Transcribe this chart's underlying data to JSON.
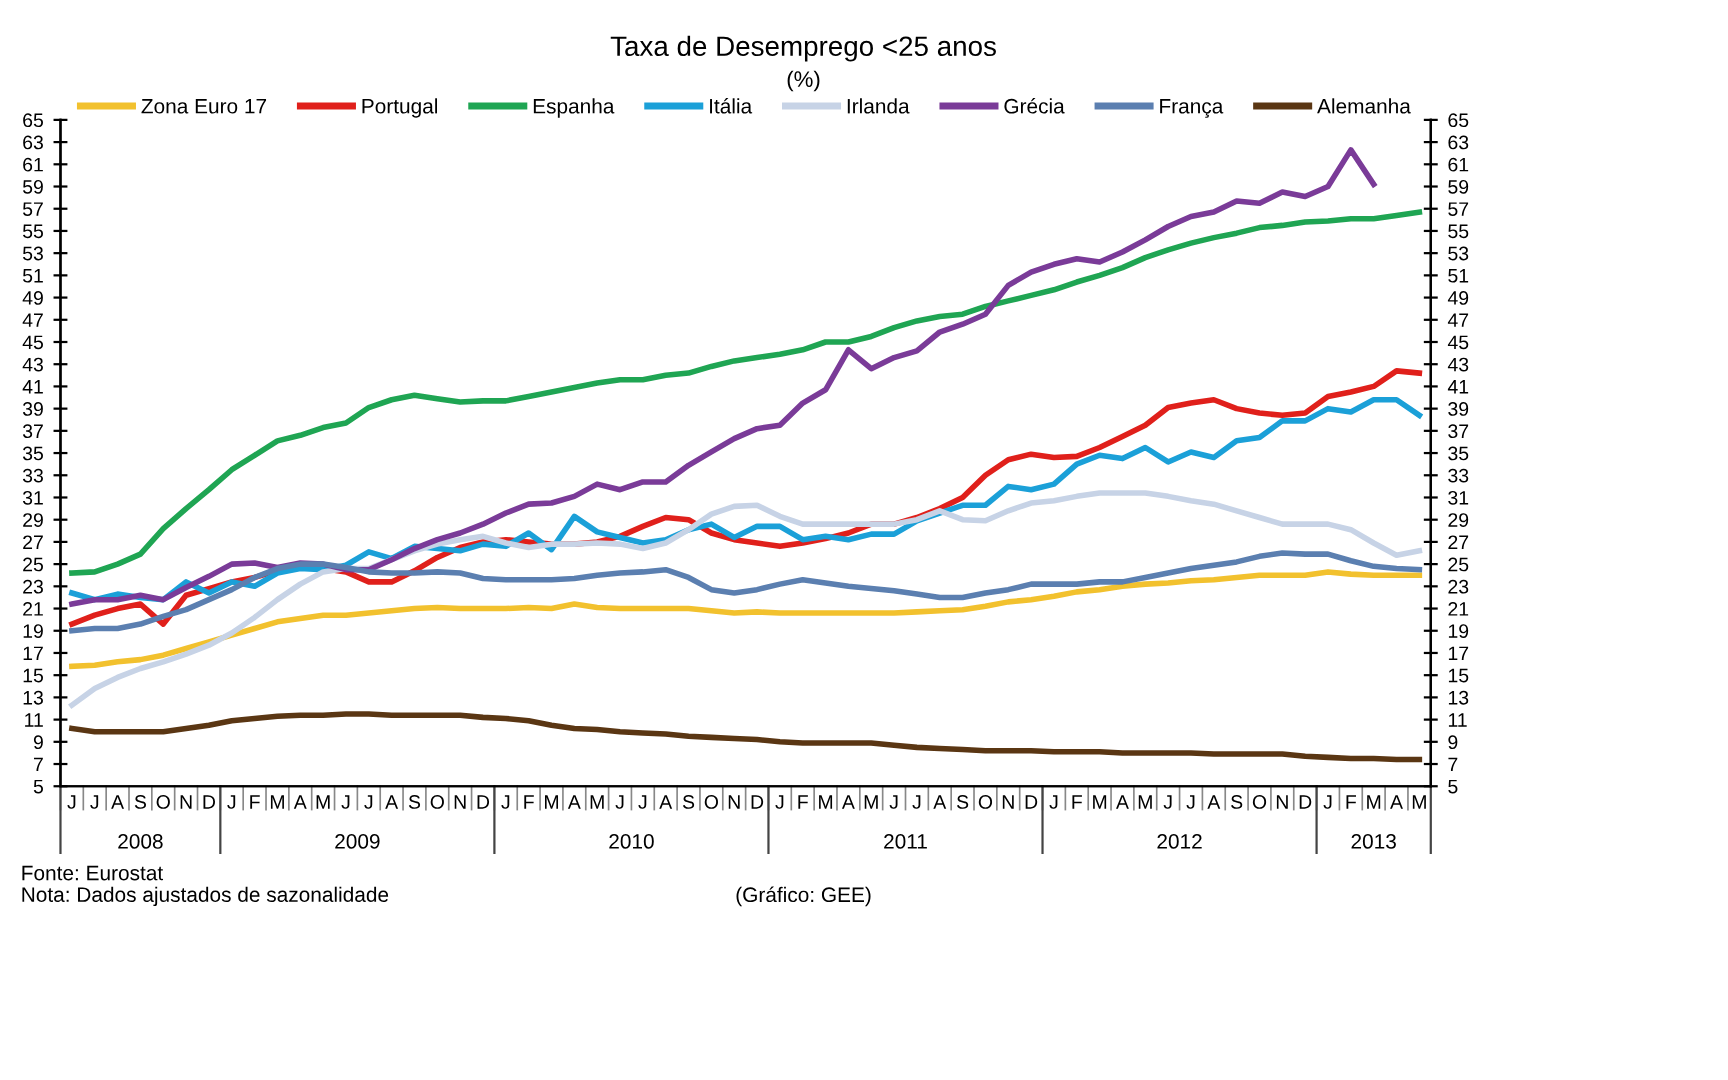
{
  "chart_data": {
    "type": "line",
    "title": "Taxa de Desemprego <25 anos",
    "subtitle": "(%)",
    "categories": [
      "J",
      "J",
      "A",
      "S",
      "O",
      "N",
      "D",
      "J",
      "F",
      "M",
      "A",
      "M",
      "J",
      "J",
      "A",
      "S",
      "O",
      "N",
      "D",
      "J",
      "F",
      "M",
      "A",
      "M",
      "J",
      "J",
      "A",
      "S",
      "O",
      "N",
      "D",
      "J",
      "F",
      "M",
      "A",
      "M",
      "J",
      "J",
      "A",
      "S",
      "O",
      "N",
      "D",
      "J",
      "F",
      "M",
      "A",
      "M",
      "J",
      "J",
      "A",
      "S",
      "O",
      "N",
      "D",
      "J",
      "F",
      "M",
      "A",
      "M"
    ],
    "x2lim": [
      2007.9167,
      2012.9167
    ],
    "x2ticks": [
      {
        "value": 2008.2083,
        "label": "2008"
      },
      2009,
      2010,
      2011,
      2012,
      {
        "value": 2012.7083,
        "label": "2013"
      }
    ],
    "ylim": [
      5,
      65
    ],
    "yticks": [
      5,
      7,
      9,
      11,
      13,
      15,
      17,
      19,
      21,
      23,
      25,
      27,
      29,
      31,
      33,
      35,
      37,
      39,
      41,
      43,
      45,
      47,
      49,
      51,
      53,
      55,
      57,
      59,
      61,
      63,
      65
    ],
    "y2lim": [
      5,
      65
    ],
    "y2ticks": [
      5,
      7,
      9,
      11,
      13,
      15,
      17,
      19,
      21,
      23,
      25,
      27,
      29,
      31,
      33,
      35,
      37,
      39,
      41,
      43,
      45,
      47,
      49,
      51,
      53,
      55,
      57,
      59,
      61,
      63,
      65
    ],
    "grid": false,
    "legend": "top",
    "marker": "none",
    "line_style": "solid",
    "series": [
      {
        "name": "Zona Euro 17",
        "color": "#f2c12e",
        "values": [
          15.8,
          15.9,
          16.2,
          16.4,
          16.8,
          17.4,
          18.0,
          18.6,
          19.2,
          19.8,
          20.1,
          20.4,
          20.4,
          20.6,
          20.8,
          21.0,
          21.1,
          21.0,
          21.0,
          21.0,
          21.1,
          21.0,
          21.4,
          21.1,
          21.0,
          21.0,
          21.0,
          21.0,
          20.8,
          20.6,
          20.7,
          20.6,
          20.6,
          20.6,
          20.6,
          20.6,
          20.6,
          20.7,
          20.8,
          20.9,
          21.2,
          21.6,
          21.8,
          22.1,
          22.5,
          22.7,
          23.0,
          23.2,
          23.3,
          23.5,
          23.6,
          23.8,
          24.0,
          24.0,
          24.0,
          24.3,
          24.1,
          24.0,
          24.0,
          24.0
        ]
      },
      {
        "name": "Portugal",
        "color": "#e0201b",
        "values": [
          19.6,
          20.4,
          21.0,
          21.4,
          19.6,
          22.2,
          22.8,
          23.4,
          23.8,
          24.4,
          24.8,
          24.6,
          24.3,
          23.4,
          23.4,
          24.4,
          25.6,
          26.5,
          27.0,
          27.2,
          27.0,
          26.8,
          26.8,
          27.0,
          27.5,
          28.4,
          29.2,
          29.0,
          27.8,
          27.2,
          26.9,
          26.6,
          26.9,
          27.3,
          27.8,
          28.6,
          28.6,
          29.2,
          30.0,
          31.0,
          33.0,
          34.4,
          34.9,
          34.6,
          34.7,
          35.5,
          36.5,
          37.5,
          39.1,
          39.5,
          39.8,
          39.0,
          38.6,
          38.4,
          38.6,
          40.1,
          40.5,
          41.0,
          42.4,
          42.2
        ]
      },
      {
        "name": "Espanha",
        "color": "#1fa553",
        "values": [
          24.2,
          24.3,
          25.0,
          25.9,
          28.2,
          30.0,
          31.7,
          33.5,
          34.8,
          36.1,
          36.6,
          37.3,
          37.7,
          39.1,
          39.8,
          40.2,
          39.9,
          39.6,
          39.7,
          39.7,
          40.1,
          40.5,
          40.9,
          41.3,
          41.6,
          41.6,
          42.0,
          42.2,
          42.8,
          43.3,
          43.6,
          43.9,
          44.3,
          45.0,
          45.0,
          45.5,
          46.3,
          46.9,
          47.3,
          47.5,
          48.2,
          48.7,
          49.2,
          49.7,
          50.4,
          51.0,
          51.7,
          52.6,
          53.3,
          53.9,
          54.4,
          54.8,
          55.3,
          55.5,
          55.8,
          55.9,
          56.1,
          56.1,
          56.4,
          56.7
        ]
      },
      {
        "name": "Itália",
        "color": "#1ba0d8",
        "values": [
          22.4,
          21.8,
          22.3,
          22.0,
          21.8,
          23.4,
          22.4,
          23.4,
          23.0,
          24.2,
          24.6,
          24.5,
          24.9,
          26.1,
          25.5,
          26.6,
          26.4,
          26.2,
          26.8,
          26.6,
          27.8,
          26.3,
          29.3,
          27.9,
          27.4,
          26.9,
          27.2,
          28.1,
          28.6,
          27.4,
          28.4,
          28.4,
          27.2,
          27.5,
          27.2,
          27.7,
          27.7,
          28.9,
          29.6,
          30.3,
          30.3,
          32.0,
          31.7,
          32.2,
          34.0,
          34.8,
          34.5,
          35.5,
          34.2,
          35.1,
          34.6,
          36.1,
          36.4,
          37.9,
          37.9,
          39.0,
          38.7,
          39.8,
          39.8,
          38.4
        ]
      },
      {
        "name": "Irlanda",
        "color": "#c7d3e6",
        "values": [
          12.3,
          13.8,
          14.8,
          15.6,
          16.2,
          16.9,
          17.7,
          18.8,
          20.2,
          21.8,
          23.2,
          24.3,
          24.6,
          24.6,
          25.4,
          26.2,
          26.8,
          27.2,
          27.5,
          26.9,
          26.5,
          26.8,
          26.8,
          26.9,
          26.8,
          26.4,
          26.9,
          28.1,
          29.5,
          30.2,
          30.3,
          29.3,
          28.6,
          28.6,
          28.6,
          28.6,
          28.6,
          29.0,
          29.8,
          29.0,
          28.9,
          29.8,
          30.5,
          30.7,
          31.1,
          31.4,
          31.4,
          31.4,
          31.1,
          30.7,
          30.4,
          29.8,
          29.2,
          28.6,
          28.6,
          28.6,
          28.1,
          26.9,
          25.8,
          26.2
        ]
      },
      {
        "name": "Grécia",
        "color": "#7a3b98",
        "values": [
          21.4,
          21.8,
          21.8,
          22.2,
          21.8,
          22.9,
          23.9,
          25.0,
          25.1,
          24.7,
          25.1,
          25.0,
          24.5,
          24.5,
          25.4,
          26.4,
          27.2,
          27.8,
          28.6,
          29.6,
          30.4,
          30.5,
          31.1,
          32.2,
          31.7,
          32.4,
          32.4,
          33.9,
          35.1,
          36.3,
          37.2,
          37.5,
          39.5,
          40.7,
          44.3,
          42.6,
          43.6,
          44.2,
          45.9,
          46.6,
          47.5,
          50.1,
          51.3,
          52.0,
          52.5,
          52.2,
          53.1,
          54.2,
          55.4,
          56.3,
          56.7,
          57.7,
          57.5,
          58.5,
          58.1,
          59.0,
          62.3,
          59.2,
          null,
          null
        ]
      },
      {
        "name": "França",
        "color": "#5b7fb0",
        "values": [
          19.0,
          19.2,
          19.2,
          19.6,
          20.3,
          20.9,
          21.8,
          22.7,
          23.8,
          24.6,
          25.0,
          25.0,
          24.7,
          24.3,
          24.2,
          24.2,
          24.3,
          24.2,
          23.7,
          23.6,
          23.6,
          23.6,
          23.7,
          24.0,
          24.2,
          24.3,
          24.5,
          23.8,
          22.7,
          22.4,
          22.7,
          23.2,
          23.6,
          23.3,
          23.0,
          22.8,
          22.6,
          22.3,
          22.0,
          22.0,
          22.4,
          22.7,
          23.2,
          23.2,
          23.2,
          23.4,
          23.4,
          23.8,
          24.2,
          24.6,
          24.9,
          25.2,
          25.7,
          26.0,
          25.9,
          25.9,
          25.3,
          24.8,
          24.6,
          24.5
        ]
      },
      {
        "name": "Alemanha",
        "color": "#5a3613",
        "values": [
          10.2,
          9.9,
          9.9,
          9.9,
          9.9,
          10.2,
          10.5,
          10.9,
          11.1,
          11.3,
          11.4,
          11.4,
          11.5,
          11.5,
          11.4,
          11.4,
          11.4,
          11.4,
          11.2,
          11.1,
          10.9,
          10.5,
          10.2,
          10.1,
          9.9,
          9.8,
          9.7,
          9.5,
          9.4,
          9.3,
          9.2,
          9.0,
          8.9,
          8.9,
          8.9,
          8.9,
          8.7,
          8.5,
          8.4,
          8.3,
          8.2,
          8.2,
          8.2,
          8.1,
          8.1,
          8.1,
          8.0,
          8.0,
          8.0,
          8.0,
          7.9,
          7.9,
          7.9,
          7.9,
          7.7,
          7.6,
          7.5,
          7.5,
          7.4,
          7.4
        ]
      }
    ],
    "annotations": [
      "Fonte: Eurostat",
      "Nota: Dados ajustados de sazonalidade",
      "(Gráfico: GEE)"
    ]
  }
}
